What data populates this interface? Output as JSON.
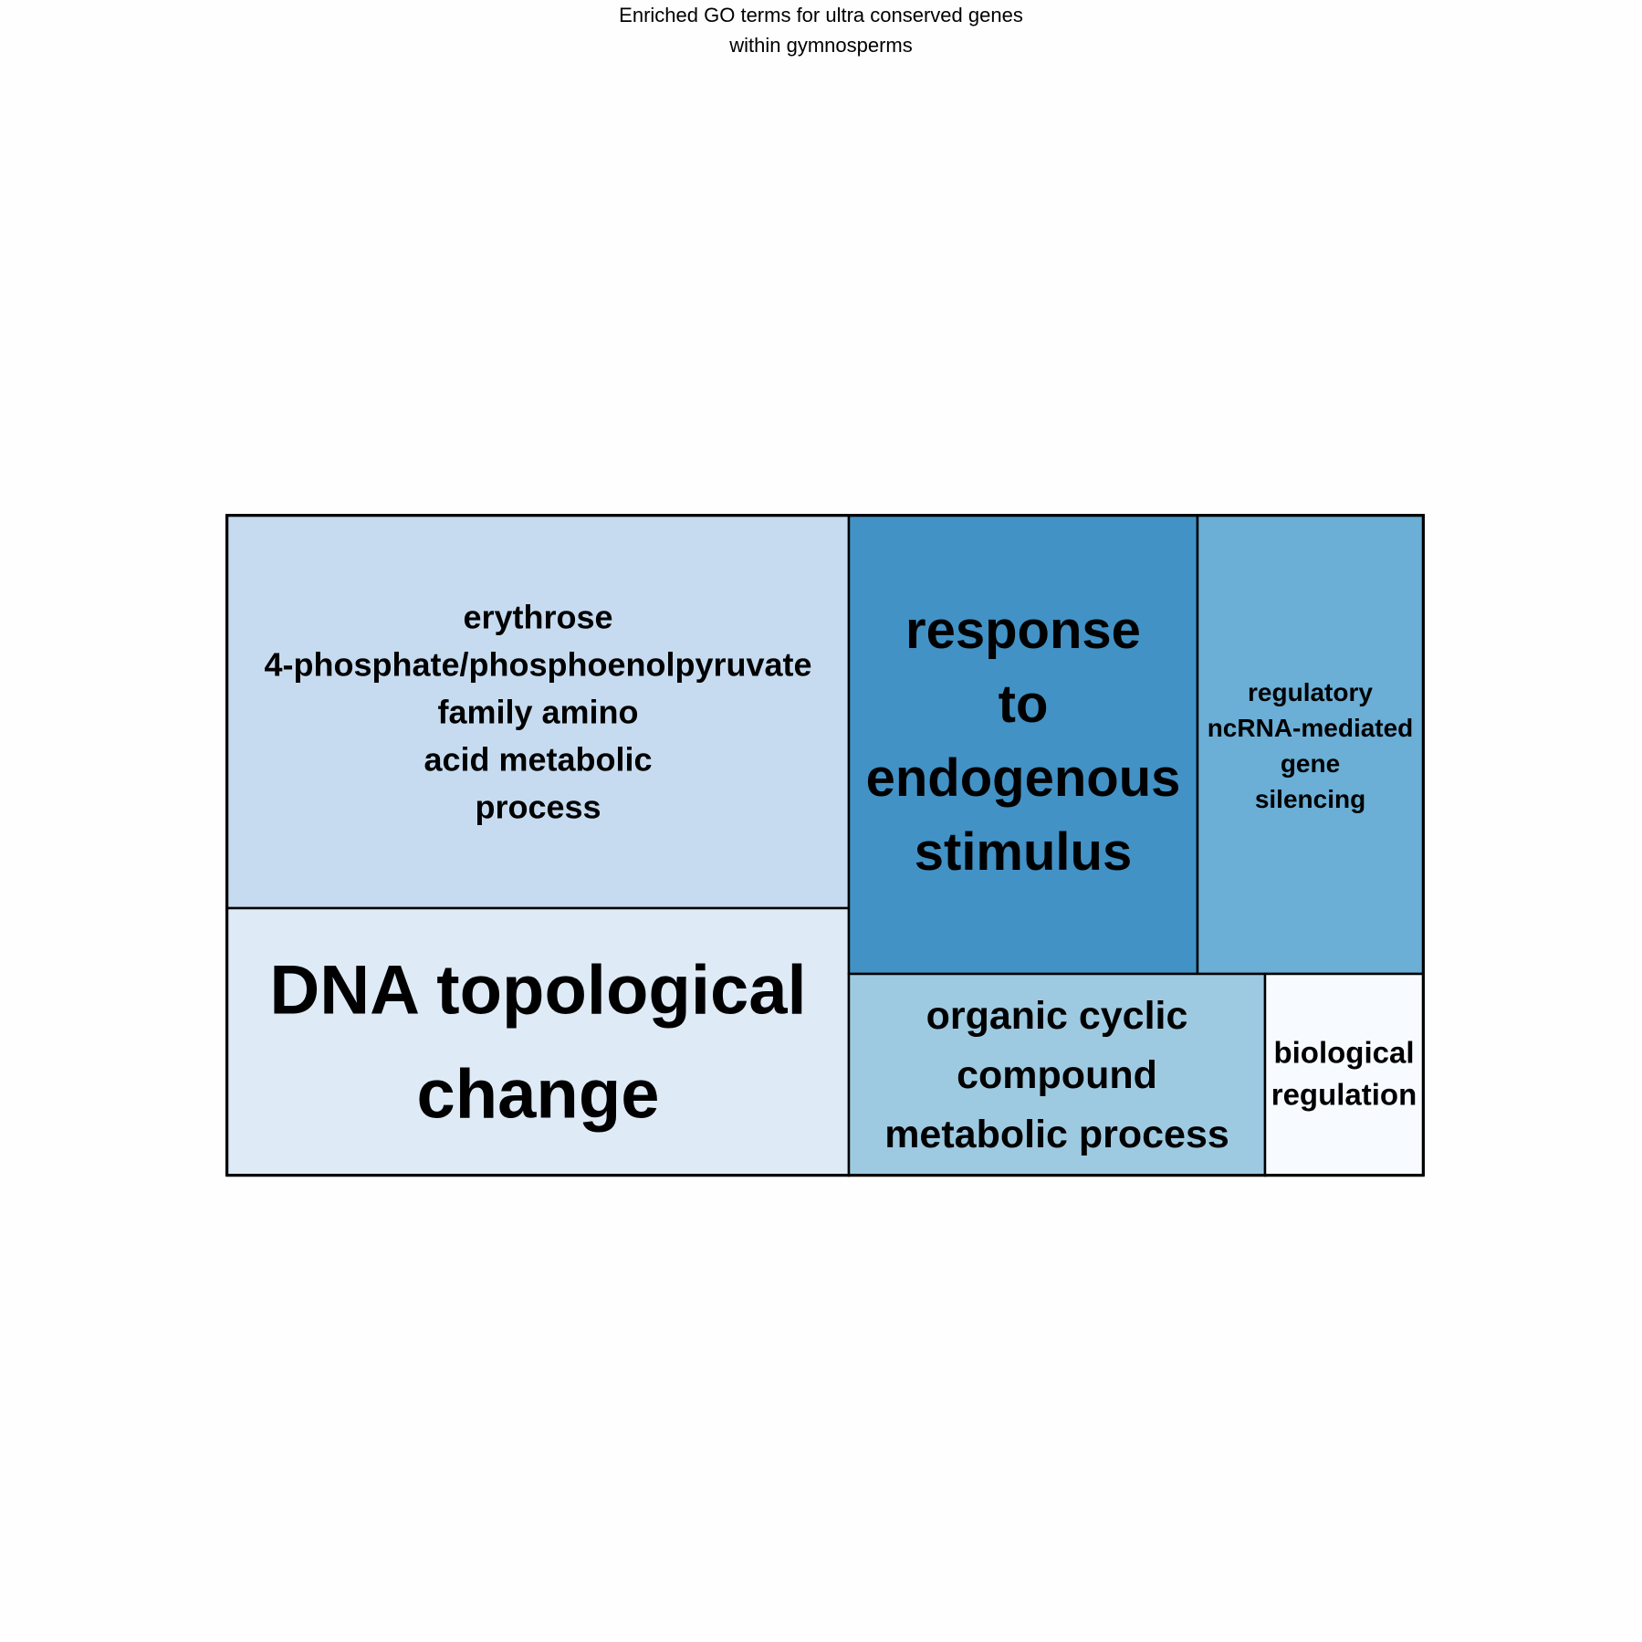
{
  "title_lines": [
    "Enriched GO terms for ultra conserved genes",
    "within gymnosperms"
  ],
  "chart_data": {
    "type": "treemap",
    "title": "Enriched GO terms for ultra conserved genes within gymnosperms",
    "tiles": [
      {
        "label_lines": [
          "erythrose",
          "4-phosphate/phosphoenolpyruvate",
          "family amino",
          "acid metabolic",
          "process"
        ],
        "fill": "#c6dbef"
      },
      {
        "label_lines": [
          "DNA topological",
          "change"
        ],
        "fill": "#deebf7"
      },
      {
        "label_lines": [
          "response",
          "to",
          "endogenous",
          "stimulus"
        ],
        "fill": "#4292c6"
      },
      {
        "label_lines": [
          "regulatory",
          "ncRNA-mediated",
          "gene",
          "silencing"
        ],
        "fill": "#6baed6"
      },
      {
        "label_lines": [
          "organic cyclic",
          "compound",
          "metabolic process"
        ],
        "fill": "#9ecae1"
      },
      {
        "label_lines": [
          "biological",
          "regulation"
        ],
        "fill": "#f7fbff"
      }
    ]
  }
}
